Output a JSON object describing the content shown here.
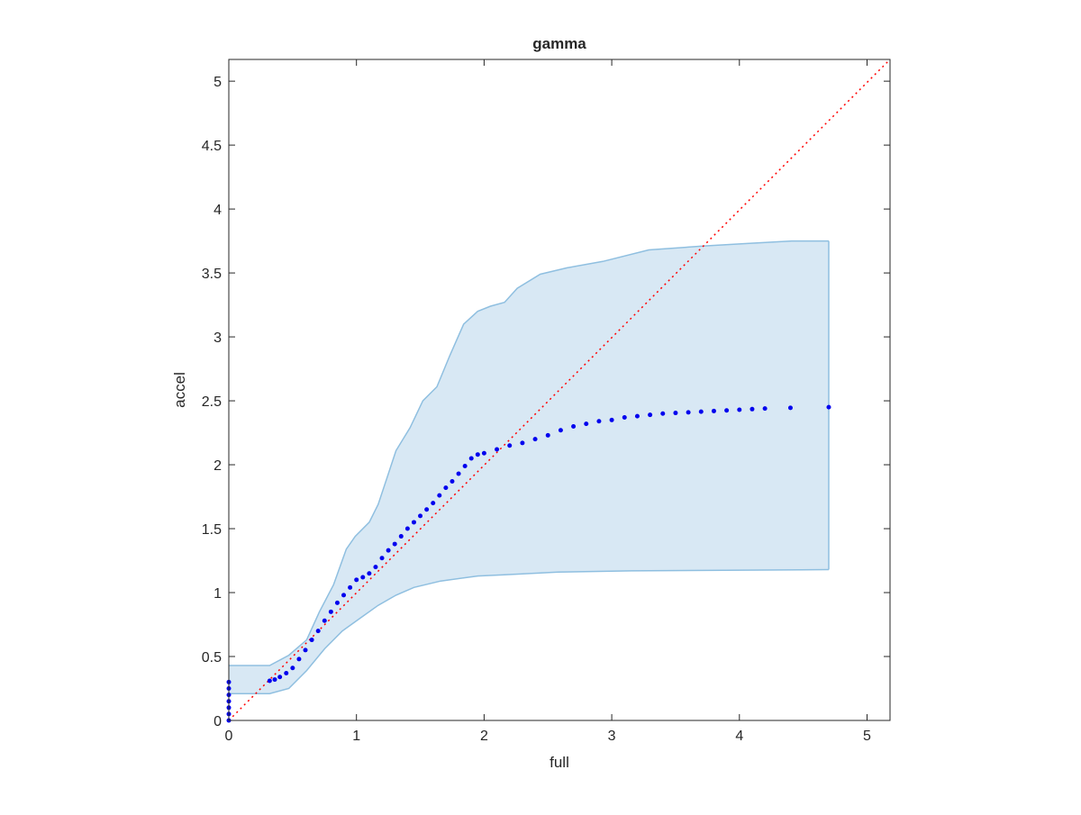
{
  "chart_data": {
    "type": "scatter",
    "title": "gamma",
    "x_label": "full",
    "y_label": "accel",
    "xlim": [
      0,
      5.18
    ],
    "ylim": [
      0,
      5.17
    ],
    "xticks": [
      0,
      1,
      2,
      3,
      4,
      5
    ],
    "yticks": [
      0,
      0.5,
      1,
      1.5,
      2,
      2.5,
      3,
      3.5,
      4,
      4.5,
      5
    ],
    "series": [
      {
        "color": "#0000ee",
        "x": [
          0,
          0,
          0,
          0,
          0,
          0,
          0,
          0.32,
          0.36,
          0.4,
          0.45,
          0.5,
          0.55,
          0.6,
          0.65,
          0.7,
          0.75,
          0.8,
          0.85,
          0.9,
          0.95,
          1.0,
          1.05,
          1.1,
          1.15,
          1.2,
          1.25,
          1.3,
          1.35,
          1.4,
          1.45,
          1.5,
          1.55,
          1.6,
          1.65,
          1.7,
          1.75,
          1.8,
          1.85,
          1.9,
          1.95,
          2.0,
          2.1,
          2.2,
          2.3,
          2.4,
          2.5,
          2.6,
          2.7,
          2.8,
          2.9,
          3.0,
          3.1,
          3.2,
          3.3,
          3.4,
          3.5,
          3.6,
          3.7,
          3.8,
          3.9,
          4.0,
          4.1,
          4.2,
          4.4,
          4.7
        ],
        "values": [
          0,
          0.05,
          0.1,
          0.15,
          0.2,
          0.25,
          0.3,
          0.31,
          0.32,
          0.34,
          0.37,
          0.41,
          0.48,
          0.55,
          0.63,
          0.7,
          0.78,
          0.85,
          0.92,
          0.98,
          1.04,
          1.1,
          1.12,
          1.15,
          1.2,
          1.27,
          1.33,
          1.38,
          1.44,
          1.5,
          1.55,
          1.6,
          1.65,
          1.7,
          1.76,
          1.82,
          1.87,
          1.93,
          1.99,
          2.05,
          2.08,
          2.09,
          2.12,
          2.15,
          2.17,
          2.2,
          2.23,
          2.27,
          2.3,
          2.32,
          2.34,
          2.35,
          2.37,
          2.38,
          2.39,
          2.4,
          2.405,
          2.41,
          2.415,
          2.42,
          2.425,
          2.43,
          2.435,
          2.44,
          2.445,
          2.45
        ]
      }
    ],
    "band": {
      "color": "#d8e8f4",
      "edge_color": "#8fbfe0",
      "upper": {
        "x": [
          0,
          0.32,
          0.47,
          0.61,
          0.71,
          0.82,
          0.92,
          0.99,
          1.1,
          1.17,
          1.24,
          1.31,
          1.42,
          1.52,
          1.63,
          1.73,
          1.84,
          1.95,
          2.05,
          2.16,
          2.26,
          2.44,
          2.65,
          2.93,
          3.29,
          3.71,
          4.06,
          4.41,
          4.7
        ],
        "values": [
          0.43,
          0.43,
          0.51,
          0.63,
          0.85,
          1.06,
          1.34,
          1.44,
          1.55,
          1.69,
          1.9,
          2.11,
          2.29,
          2.5,
          2.61,
          2.85,
          3.1,
          3.2,
          3.24,
          3.27,
          3.38,
          3.49,
          3.54,
          3.59,
          3.68,
          3.71,
          3.73,
          3.75,
          3.75
        ]
      },
      "lower": {
        "x": [
          0,
          0.32,
          0.47,
          0.61,
          0.75,
          0.89,
          1.03,
          1.17,
          1.31,
          1.45,
          1.66,
          1.95,
          2.16,
          2.58,
          3.15,
          4.7
        ],
        "values": [
          0.21,
          0.21,
          0.25,
          0.39,
          0.56,
          0.7,
          0.8,
          0.9,
          0.98,
          1.04,
          1.09,
          1.13,
          1.14,
          1.16,
          1.17,
          1.18
        ]
      }
    },
    "reference_line": {
      "color": "#ff0000",
      "x": [
        0,
        5.18
      ],
      "values": [
        0,
        5.17
      ]
    }
  }
}
